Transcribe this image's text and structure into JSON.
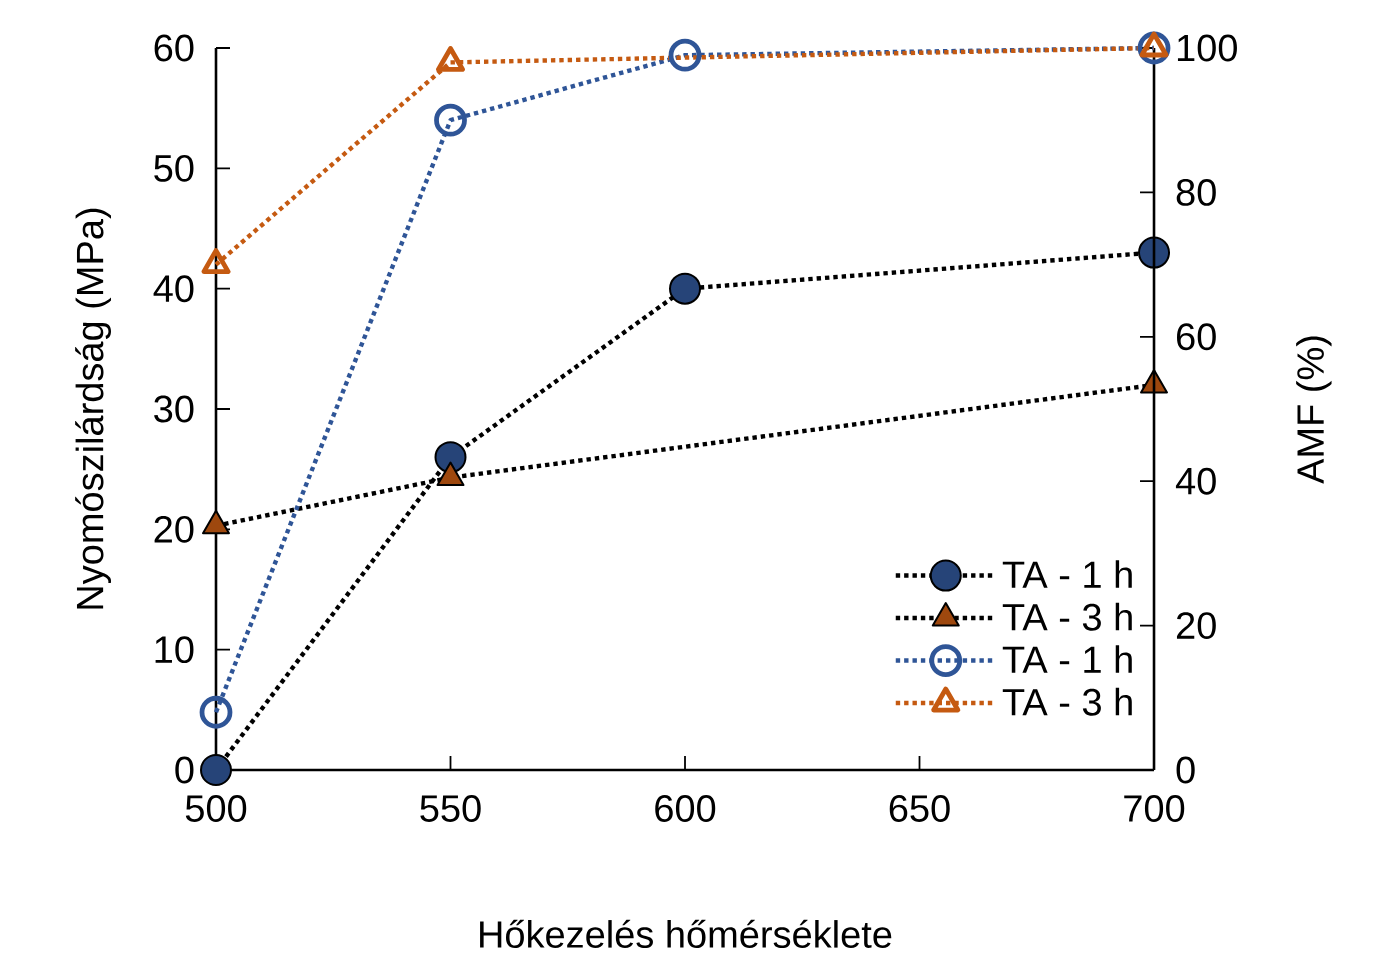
{
  "chart_data": {
    "type": "line",
    "xlabel": "Hőkezelés hőmérséklete",
    "ylabel": "Nyomószilárdság (MPa)",
    "y2label": "AMF (%)",
    "xlim": [
      500,
      700
    ],
    "xticks": [
      500,
      550,
      600,
      650,
      700
    ],
    "ylim": [
      0,
      60
    ],
    "yticks": [
      0,
      10,
      20,
      30,
      40,
      50,
      60
    ],
    "y2lim": [
      0,
      100
    ],
    "y2ticks": [
      0,
      20,
      40,
      60,
      80,
      100
    ],
    "grid": false,
    "legend": "bottom right",
    "line_style": "dotted",
    "series": [
      {
        "name": "TA - 1 h",
        "color": "#264478",
        "marker": "circle",
        "axis": "y",
        "x": [
          500,
          550,
          600,
          700
        ],
        "values": [
          0,
          26,
          40,
          43
        ]
      },
      {
        "name": "TA - 3 h",
        "color": "#9e480e",
        "marker": "triangle",
        "axis": "y",
        "x": [
          500,
          550,
          700
        ],
        "values": [
          20.3,
          24.3,
          32
        ]
      },
      {
        "name": "TA - 1 h",
        "color": "#2f5597",
        "marker": "circle",
        "axis": "y2",
        "x": [
          500,
          550,
          600,
          700
        ],
        "values": [
          8,
          90,
          99,
          100
        ]
      },
      {
        "name": "TA - 3 h",
        "color": "#c55a11",
        "marker": "triangle",
        "axis": "y2",
        "x": [
          500,
          550,
          700
        ],
        "values": [
          70,
          98,
          100
        ]
      }
    ]
  }
}
